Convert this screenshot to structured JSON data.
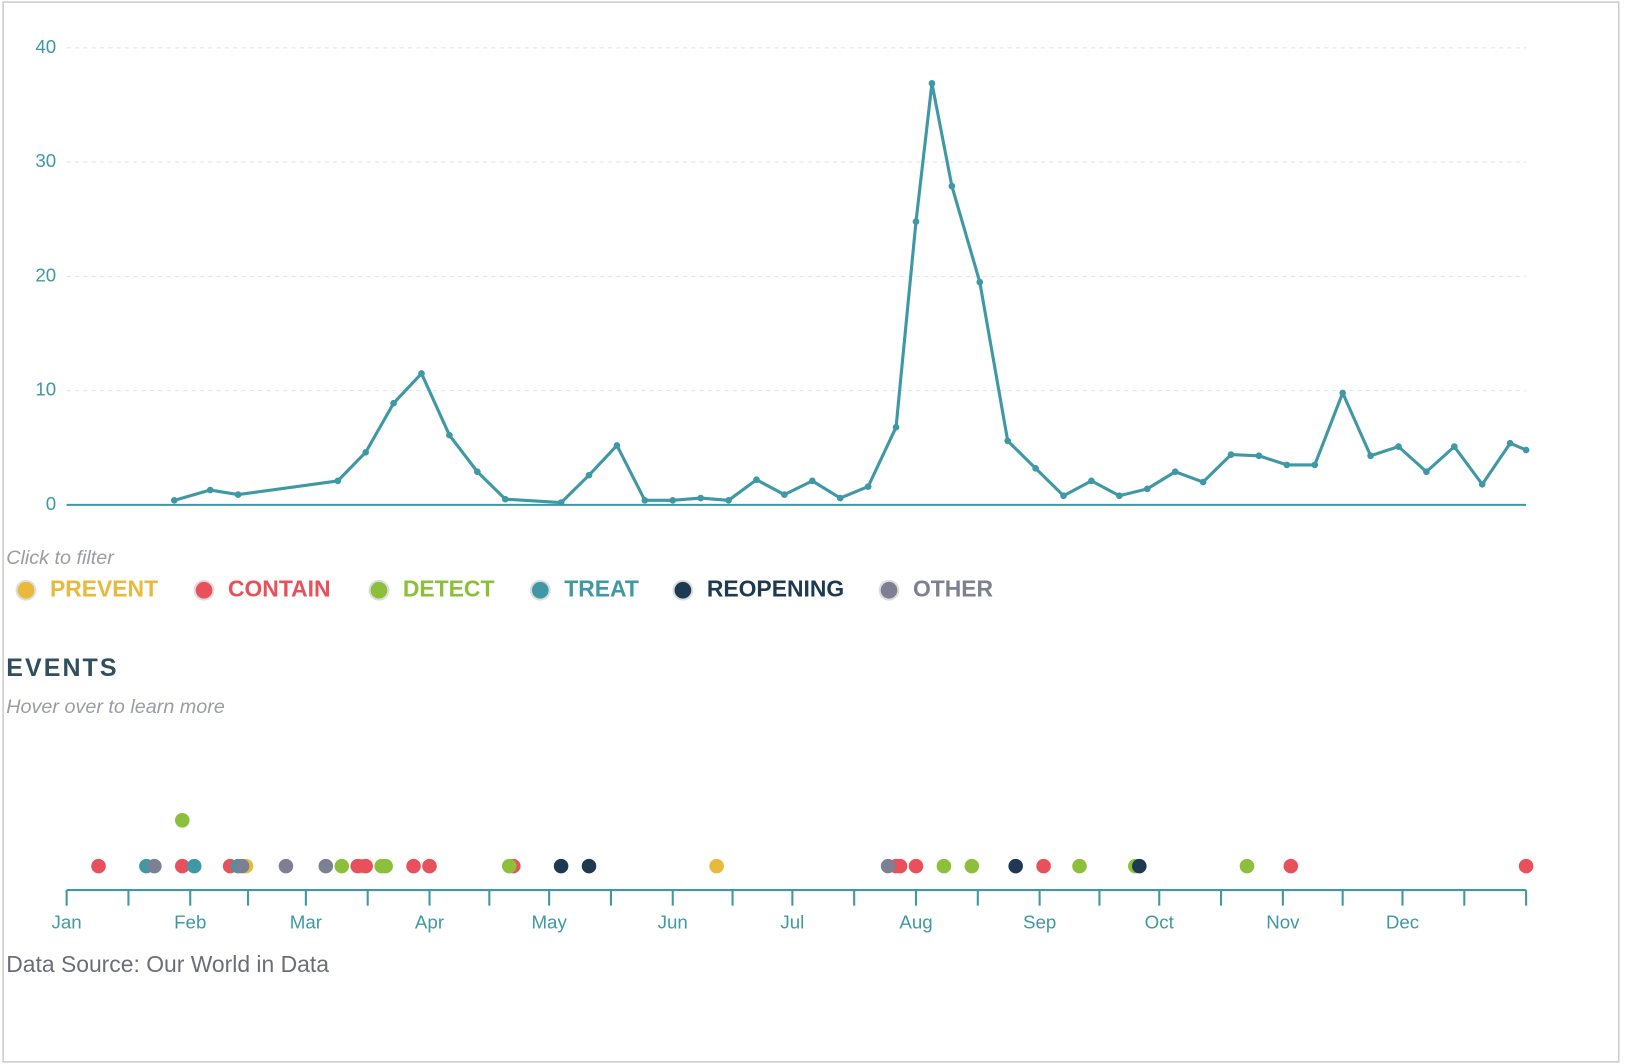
{
  "chart_data": [
    {
      "type": "line",
      "color": "#3f98a5",
      "x": [
        27,
        36,
        43,
        68,
        75,
        82,
        89,
        96,
        103,
        110,
        124,
        131,
        138,
        145,
        152,
        159,
        166,
        173,
        180,
        187,
        194,
        201,
        208,
        213,
        217,
        222,
        229,
        236,
        243,
        250,
        257,
        264,
        271,
        278,
        285,
        292,
        299,
        306,
        313,
        320,
        327,
        334,
        341,
        348,
        355,
        362,
        366
      ],
      "values": [
        0.4,
        1.3,
        0.9,
        2.1,
        4.6,
        8.9,
        11.5,
        6.1,
        2.9,
        0.5,
        0.2,
        2.6,
        5.2,
        0.4,
        0.4,
        0.6,
        0.4,
        2.2,
        0.9,
        2.1,
        0.6,
        1.6,
        6.8,
        24.8,
        36.9,
        27.9,
        19.5,
        5.6,
        3.2,
        0.8,
        2.1,
        0.8,
        1.4,
        2.9,
        2.0,
        4.4,
        4.3,
        3.5,
        3.5,
        9.8,
        4.3,
        5.1,
        2.9,
        5.1,
        1.8,
        5.4,
        4.8
      ],
      "xlim": [
        0,
        366
      ],
      "ylim": [
        0,
        40
      ],
      "yticks": [
        0,
        10,
        20,
        30,
        40
      ],
      "grid": true
    },
    {
      "type": "timeline",
      "legend_note": "Click to filter",
      "title": "EVENTS",
      "subtitle": "Hover over to learn more",
      "series": [
        {
          "name": "PREVENT",
          "color": "#e8b93a",
          "x": [
            45,
            74,
            163
          ]
        },
        {
          "name": "CONTAIN",
          "color": "#e8505b",
          "x": [
            8,
            29,
            41,
            73,
            75,
            87,
            91,
            112,
            208,
            209,
            213,
            245,
            307,
            366
          ]
        },
        {
          "name": "DETECT",
          "color": "#8cbf3a",
          "x": [
            29,
            69,
            79,
            80,
            111,
            220,
            227,
            254,
            268,
            296
          ]
        },
        {
          "name": "TREAT",
          "color": "#3f98a5",
          "x": [
            20,
            32,
            43
          ]
        },
        {
          "name": "REOPENING",
          "color": "#1e3a52",
          "x": [
            124,
            131,
            238,
            269
          ]
        },
        {
          "name": "OTHER",
          "color": "#7c8092",
          "x": [
            22,
            44,
            55,
            65,
            206
          ]
        }
      ],
      "xlim": [
        0,
        366
      ],
      "xticks": [
        {
          "value": 0,
          "label": "Jan"
        },
        {
          "value": 31,
          "label": "Feb"
        },
        {
          "value": 60,
          "label": "Mar"
        },
        {
          "value": 91,
          "label": "Apr"
        },
        {
          "value": 121,
          "label": "May"
        },
        {
          "value": 152,
          "label": "Jun"
        },
        {
          "value": 182,
          "label": "Jul"
        },
        {
          "value": 213,
          "label": "Aug"
        },
        {
          "value": 244,
          "label": "Sep"
        },
        {
          "value": 274,
          "label": "Oct"
        },
        {
          "value": 305,
          "label": "Nov"
        },
        {
          "value": 335,
          "label": "Dec"
        }
      ],
      "source": "Data Source: Our World in Data"
    }
  ]
}
